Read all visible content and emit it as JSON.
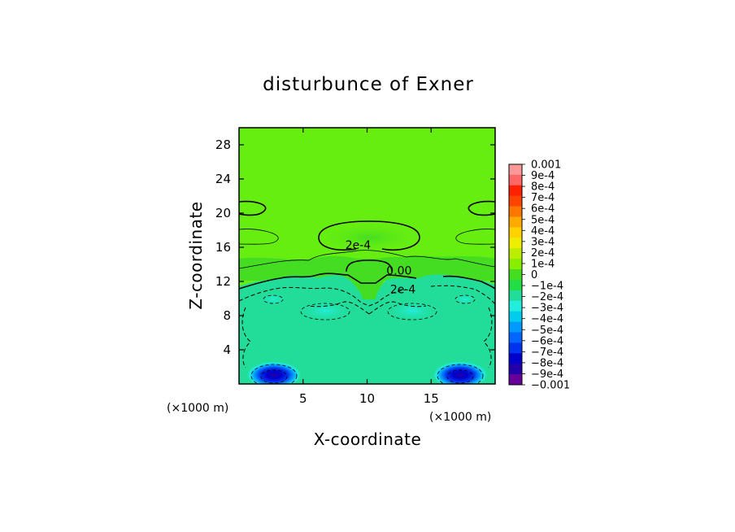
{
  "chart_data": {
    "type": "heatmap",
    "title": "disturbunce of Exner",
    "xlabel": "X-coordinate",
    "ylabel": "Z-coordinate",
    "x_unit_label": "(×1000 m)",
    "x_unit_label_bottom": "(×1000 m)",
    "xlim": [
      0,
      20
    ],
    "ylim": [
      0,
      30
    ],
    "x_ticks": [
      5,
      10,
      15
    ],
    "y_ticks": [
      4,
      8,
      12,
      16,
      20,
      24,
      28
    ],
    "x_tick_labels": [
      "5",
      "10",
      "15"
    ],
    "y_tick_labels": [
      "4",
      "8",
      "12",
      "16",
      "20",
      "24",
      "28"
    ],
    "contour_labels": [
      {
        "text": "2e-4",
        "x": 9.3,
        "z": 15.8
      },
      {
        "text": "0.00",
        "x": 12.5,
        "z": 12.8
      },
      {
        "text": "2e-4",
        "x": 12.8,
        "z": 10.6
      }
    ],
    "colorbar": {
      "levels": [
        -0.001,
        -0.0009,
        -0.0008,
        -0.0007,
        -0.0006,
        -0.0005,
        -0.0004,
        -0.0003,
        -0.0002,
        -0.0001,
        0,
        0.0001,
        0.0002,
        0.0003,
        0.0004,
        0.0005,
        0.0006,
        0.0007,
        0.0008,
        0.0009,
        0.001
      ],
      "labels": [
        "0.001",
        "9e-4",
        "8e-4",
        "7e-4",
        "6e-4",
        "5e-4",
        "4e-4",
        "3e-4",
        "2e-4",
        "1e-4",
        "0",
        "−1e-4",
        "−2e-4",
        "−3e-4",
        "−4e-4",
        "−5e-4",
        "−6e-4",
        "−7e-4",
        "−8e-4",
        "−9e-4",
        "−0.001"
      ],
      "colors": [
        "#ff9999",
        "#ff6666",
        "#ff2200",
        "#ff4400",
        "#ff7700",
        "#ffaa00",
        "#ffd200",
        "#eeee00",
        "#bbee00",
        "#88ee00",
        "#44dd22",
        "#22dd44",
        "#22dd99",
        "#22eedd",
        "#00ccee",
        "#0099ff",
        "#0066ff",
        "#0033ee",
        "#0000cc",
        "#2200aa",
        "#660099"
      ]
    },
    "field_description_values": {
      "upper_background": 0.00015,
      "lower_background": -0.00025,
      "bottom_vortices": [
        {
          "x": 2.8,
          "z": 1.0,
          "min": -0.0009
        },
        {
          "x": 17.2,
          "z": 1.0,
          "min": -0.0009
        }
      ]
    }
  }
}
